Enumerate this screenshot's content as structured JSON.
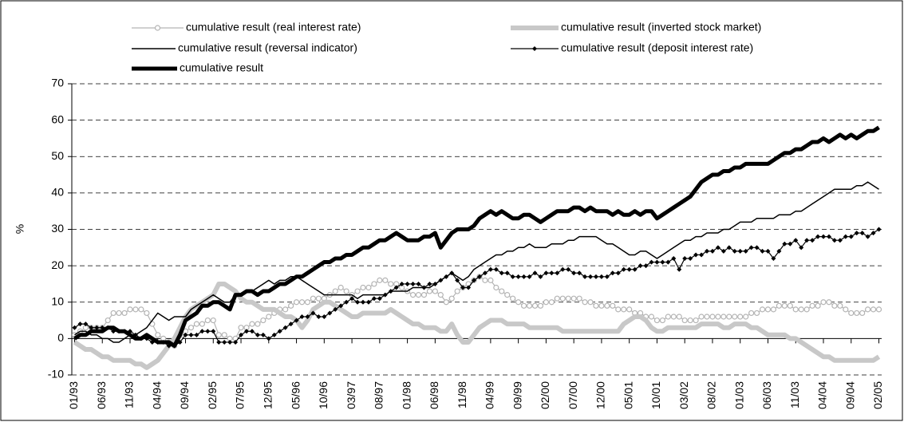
{
  "chart_data": {
    "type": "line",
    "y_label": "%",
    "ylim": [
      -10,
      70
    ],
    "yticks": [
      -10,
      0,
      10,
      20,
      30,
      40,
      50,
      60,
      70
    ],
    "grid": true,
    "categories": [
      "01/93",
      null,
      null,
      null,
      null,
      "06/93",
      null,
      null,
      null,
      null,
      "11/93",
      null,
      null,
      null,
      null,
      "04/94",
      null,
      null,
      null,
      null,
      "09/94",
      null,
      null,
      null,
      null,
      "02/95",
      null,
      null,
      null,
      null,
      "07/95",
      null,
      null,
      null,
      null,
      "12/95",
      null,
      null,
      null,
      null,
      "05/96",
      null,
      null,
      null,
      null,
      "10/96",
      null,
      null,
      null,
      null,
      "03/97",
      null,
      null,
      null,
      null,
      "08/97",
      null,
      null,
      null,
      null,
      "01/98",
      null,
      null,
      null,
      null,
      "06/98",
      null,
      null,
      null,
      null,
      "11/98",
      null,
      null,
      null,
      null,
      "04/99",
      null,
      null,
      null,
      null,
      "09/99",
      null,
      null,
      null,
      null,
      "02/00",
      null,
      null,
      null,
      null,
      "07/00",
      null,
      null,
      null,
      null,
      "12/00",
      null,
      null,
      null,
      null,
      "05/01",
      null,
      null,
      null,
      null,
      "10/01",
      null,
      null,
      null,
      null,
      "03/02",
      null,
      null,
      null,
      null,
      "08/02",
      null,
      null,
      null,
      null,
      "01/03",
      null,
      null,
      null,
      null,
      "06/03",
      null,
      null,
      null,
      null,
      "11/03",
      null,
      null,
      null,
      null,
      "04/04",
      null,
      null,
      null,
      null,
      "09/04",
      null,
      null,
      null,
      null,
      "02/05"
    ],
    "series": [
      {
        "name": "cumulative result (real interest rate)",
        "color": "#b4b4b4",
        "style": "circles",
        "values": [
          1,
          2,
          3,
          3,
          3,
          3,
          5,
          7,
          7,
          7,
          8,
          8,
          8,
          7,
          4,
          1,
          0,
          -1,
          -2,
          0,
          2,
          3,
          4,
          4,
          5,
          5,
          1,
          1,
          0,
          0,
          3,
          3,
          4,
          4,
          5,
          6,
          7,
          8,
          8,
          9,
          10,
          10,
          10,
          11,
          11,
          11,
          12,
          13,
          14,
          13,
          12,
          13,
          14,
          14,
          15,
          16,
          16,
          15,
          15,
          14,
          13,
          12,
          12,
          12,
          13,
          13,
          12,
          10,
          11,
          13,
          14,
          15,
          16,
          17,
          16,
          16,
          14,
          13,
          12,
          11,
          10,
          9,
          9,
          9,
          9,
          10,
          10,
          11,
          11,
          11,
          11,
          11,
          10,
          10,
          9,
          9,
          9,
          9,
          8,
          8,
          8,
          7,
          7,
          6,
          6,
          5,
          5,
          6,
          6,
          6,
          5,
          5,
          5,
          6,
          6,
          6,
          6,
          6,
          6,
          6,
          6,
          6,
          7,
          7,
          8,
          8,
          8,
          9,
          9,
          9,
          8,
          8,
          8,
          9,
          9,
          10,
          10,
          9,
          9,
          8,
          7,
          7,
          7,
          8,
          8,
          8
        ]
      },
      {
        "name": "cumulative result (inverted stock market)",
        "color": "#c8c8c8",
        "style": "thick",
        "values": [
          -1,
          -2,
          -3,
          -3,
          -4,
          -5,
          -5,
          -6,
          -6,
          -6,
          -6,
          -7,
          -7,
          -8,
          -7,
          -6,
          -4,
          -2,
          0,
          3,
          6,
          8,
          9,
          10,
          11,
          12,
          15,
          15,
          14,
          13,
          11,
          10,
          10,
          9,
          8,
          8,
          8,
          7,
          6,
          6,
          5,
          3,
          5,
          8,
          9,
          10,
          10,
          9,
          8,
          7,
          6,
          6,
          7,
          7,
          7,
          7,
          7,
          8,
          7,
          6,
          5,
          4,
          4,
          3,
          3,
          3,
          2,
          2,
          4,
          1,
          -1,
          -1,
          1,
          3,
          4,
          5,
          5,
          5,
          4,
          4,
          4,
          4,
          3,
          3,
          3,
          3,
          3,
          3,
          2,
          2,
          2,
          2,
          2,
          2,
          2,
          2,
          2,
          2,
          2,
          4,
          5,
          6,
          6,
          5,
          3,
          2,
          2,
          3,
          3,
          3,
          3,
          3,
          3,
          4,
          4,
          4,
          4,
          3,
          3,
          4,
          4,
          4,
          3,
          3,
          2,
          1,
          1,
          1,
          1,
          0,
          0,
          -1,
          -2,
          -3,
          -4,
          -5,
          -5,
          -6,
          -6,
          -6,
          -6,
          -6,
          -6,
          -6,
          -6,
          -5
        ]
      },
      {
        "name": "cumulative result (reversal indicator)",
        "color": "#000000",
        "style": "thin",
        "values": [
          1,
          2,
          2,
          1,
          1,
          0,
          0,
          -1,
          -1,
          0,
          1,
          1,
          2,
          3,
          5,
          7,
          6,
          5,
          6,
          6,
          6,
          8,
          9,
          10,
          11,
          12,
          11,
          10,
          10,
          12,
          12,
          13,
          13,
          14,
          15,
          16,
          15,
          16,
          16,
          17,
          17,
          16,
          15,
          14,
          13,
          12,
          12,
          12,
          12,
          12,
          12,
          11,
          12,
          12,
          12,
          12,
          12,
          13,
          13,
          13,
          13,
          14,
          14,
          14,
          14,
          15,
          16,
          17,
          18,
          17,
          16,
          17,
          19,
          20,
          21,
          22,
          23,
          23,
          24,
          24,
          25,
          25,
          26,
          25,
          25,
          25,
          26,
          26,
          26,
          27,
          27,
          28,
          28,
          28,
          28,
          27,
          26,
          26,
          25,
          24,
          23,
          23,
          24,
          24,
          23,
          22,
          23,
          24,
          25,
          26,
          27,
          27,
          28,
          28,
          29,
          29,
          29,
          30,
          30,
          31,
          32,
          32,
          32,
          33,
          33,
          33,
          33,
          34,
          34,
          34,
          35,
          35,
          36,
          37,
          38,
          39,
          40,
          41,
          41,
          41,
          41,
          42,
          42,
          43,
          42,
          41
        ]
      },
      {
        "name": "cumulative result (deposit interest rate)",
        "color": "#000000",
        "style": "diamonds",
        "values": [
          3,
          4,
          4,
          3,
          3,
          3,
          3,
          2,
          2,
          2,
          2,
          1,
          0,
          0,
          -1,
          -1,
          -1,
          -2,
          -2,
          -1,
          1,
          1,
          1,
          2,
          2,
          2,
          -1,
          -1,
          -1,
          -1,
          1,
          2,
          2,
          1,
          1,
          0,
          1,
          2,
          3,
          4,
          5,
          6,
          6,
          7,
          6,
          6,
          7,
          8,
          9,
          10,
          11,
          10,
          10,
          10,
          11,
          11,
          12,
          13,
          14,
          15,
          15,
          15,
          15,
          14,
          15,
          15,
          16,
          17,
          18,
          16,
          14,
          14,
          16,
          17,
          18,
          19,
          19,
          18,
          18,
          17,
          17,
          17,
          17,
          18,
          17,
          18,
          18,
          18,
          19,
          19,
          18,
          18,
          17,
          17,
          17,
          17,
          17,
          18,
          18,
          19,
          19,
          19,
          20,
          20,
          21,
          21,
          21,
          21,
          22,
          19,
          22,
          22,
          23,
          23,
          24,
          24,
          25,
          24,
          25,
          24,
          24,
          24,
          25,
          25,
          24,
          24,
          22,
          24,
          26,
          26,
          27,
          25,
          27,
          27,
          28,
          28,
          28,
          27,
          27,
          28,
          28,
          29,
          29,
          28,
          29,
          30
        ]
      },
      {
        "name": "cumulative result",
        "color": "#000000",
        "style": "bold",
        "values": [
          0,
          1,
          1,
          2,
          2,
          2,
          3,
          3,
          2,
          2,
          1,
          0,
          0,
          1,
          0,
          -1,
          -1,
          -1,
          -2,
          1,
          5,
          6,
          7,
          9,
          9,
          10,
          10,
          9,
          8,
          12,
          12,
          13,
          13,
          12,
          13,
          13,
          14,
          15,
          15,
          16,
          17,
          17,
          18,
          19,
          20,
          21,
          21,
          22,
          22,
          23,
          23,
          24,
          25,
          25,
          26,
          27,
          27,
          28,
          29,
          28,
          27,
          27,
          27,
          28,
          28,
          29,
          25,
          27,
          29,
          30,
          30,
          30,
          31,
          33,
          34,
          35,
          34,
          35,
          34,
          33,
          33,
          34,
          34,
          33,
          32,
          33,
          34,
          35,
          35,
          35,
          36,
          36,
          35,
          36,
          35,
          35,
          35,
          34,
          35,
          34,
          34,
          35,
          34,
          35,
          35,
          33,
          34,
          35,
          36,
          37,
          38,
          39,
          41,
          43,
          44,
          45,
          45,
          46,
          46,
          47,
          47,
          48,
          48,
          48,
          48,
          48,
          49,
          50,
          51,
          51,
          52,
          52,
          53,
          54,
          54,
          55,
          54,
          55,
          56,
          55,
          56,
          55,
          56,
          57,
          57,
          58
        ]
      }
    ]
  }
}
